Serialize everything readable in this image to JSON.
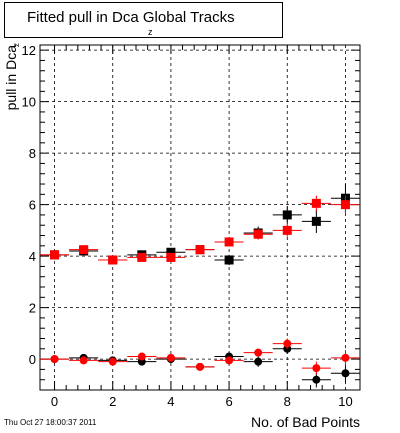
{
  "title": {
    "main": "Fitted pull in Dca Global Tracks",
    "subscript": "z"
  },
  "footer": {
    "timestamp": "Thu Oct 27 18:00:37 2011"
  },
  "chart_data": {
    "type": "scatter",
    "title": "Fitted pull in Dca Global Tracks",
    "xlabel": "No. of Bad Points",
    "ylabel": "pull in Dca",
    "ylabel_subscript": "z",
    "xlim": [
      -0.5,
      10.5
    ],
    "ylim": [
      -1.2,
      12.2
    ],
    "xticks": [
      0,
      2,
      4,
      6,
      8,
      10
    ],
    "yticks": [
      0,
      2,
      4,
      6,
      8,
      10,
      12
    ],
    "grid": true,
    "series": [
      {
        "marker": "square",
        "color": "#000000",
        "x": [
          0,
          1,
          2,
          3,
          4,
          5,
          6,
          7,
          8,
          9,
          10
        ],
        "y": [
          4.05,
          4.2,
          3.85,
          4.05,
          4.15,
          4.25,
          3.85,
          4.9,
          5.6,
          5.35,
          6.25
        ],
        "yerr": [
          0.1,
          0.12,
          0.12,
          0.12,
          0.15,
          0.15,
          0.2,
          0.25,
          0.35,
          0.45,
          0.55
        ]
      },
      {
        "marker": "square",
        "color": "#ff0000",
        "x": [
          0,
          1,
          2,
          3,
          4,
          5,
          6,
          7,
          8,
          9,
          10
        ],
        "y": [
          4.05,
          4.25,
          3.85,
          3.95,
          3.95,
          4.25,
          4.55,
          4.85,
          5.0,
          6.05,
          6.0
        ],
        "yerr": [
          0.1,
          0.1,
          0.12,
          0.12,
          0.12,
          0.12,
          0.15,
          0.2,
          0.25,
          0.3,
          0.35
        ]
      },
      {
        "marker": "circle",
        "color": "#000000",
        "x": [
          0,
          1,
          2,
          3,
          4,
          5,
          6,
          7,
          8,
          9,
          10
        ],
        "y": [
          0.0,
          0.05,
          -0.05,
          -0.1,
          0.0,
          -0.3,
          0.1,
          -0.1,
          0.4,
          -0.8,
          -0.55
        ],
        "yerr": [
          0.05,
          0.06,
          0.06,
          0.08,
          0.08,
          0.1,
          0.12,
          0.2,
          0.2,
          0.3,
          0.35
        ]
      },
      {
        "marker": "circle",
        "color": "#ff0000",
        "x": [
          0,
          1,
          2,
          3,
          4,
          5,
          6,
          7,
          8,
          9,
          10
        ],
        "y": [
          0.0,
          -0.05,
          -0.1,
          0.1,
          0.05,
          -0.3,
          -0.05,
          0.25,
          0.6,
          -0.35,
          0.05
        ],
        "yerr": [
          0.05,
          0.06,
          0.06,
          0.08,
          0.08,
          0.1,
          0.12,
          0.15,
          0.2,
          0.25,
          0.3
        ]
      }
    ]
  }
}
